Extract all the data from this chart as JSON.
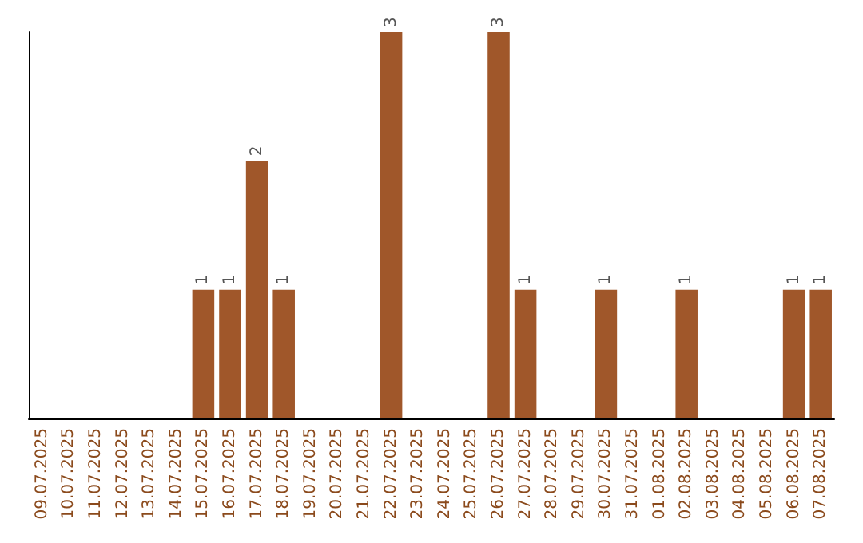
{
  "chart_data": {
    "type": "bar",
    "categories": [
      "09.07.2025",
      "10.07.2025",
      "11.07.2025",
      "12.07.2025",
      "13.07.2025",
      "14.07.2025",
      "15.07.2025",
      "16.07.2025",
      "17.07.2025",
      "18.07.2025",
      "19.07.2025",
      "20.07.2025",
      "21.07.2025",
      "22.07.2025",
      "23.07.2025",
      "24.07.2025",
      "25.07.2025",
      "26.07.2025",
      "27.07.2025",
      "28.07.2025",
      "29.07.2025",
      "30.07.2025",
      "31.07.2025",
      "01.08.2025",
      "02.08.2025",
      "03.08.2025",
      "04.08.2025",
      "05.08.2025",
      "06.08.2025",
      "07.08.2025"
    ],
    "values": [
      0,
      0,
      0,
      0,
      0,
      0,
      1,
      1,
      2,
      1,
      0,
      0,
      0,
      3,
      0,
      0,
      0,
      3,
      1,
      0,
      0,
      1,
      0,
      0,
      1,
      0,
      0,
      0,
      1,
      1
    ],
    "value_labels": [
      null,
      null,
      null,
      null,
      null,
      null,
      "1",
      "1",
      "2",
      "1",
      null,
      null,
      null,
      "3",
      null,
      null,
      null,
      "3",
      "1",
      null,
      null,
      "1",
      null,
      null,
      "1",
      null,
      null,
      null,
      "1",
      "1"
    ],
    "color": "#a0572a",
    "ylim": [
      0,
      3
    ],
    "tick_labels": "x"
  }
}
